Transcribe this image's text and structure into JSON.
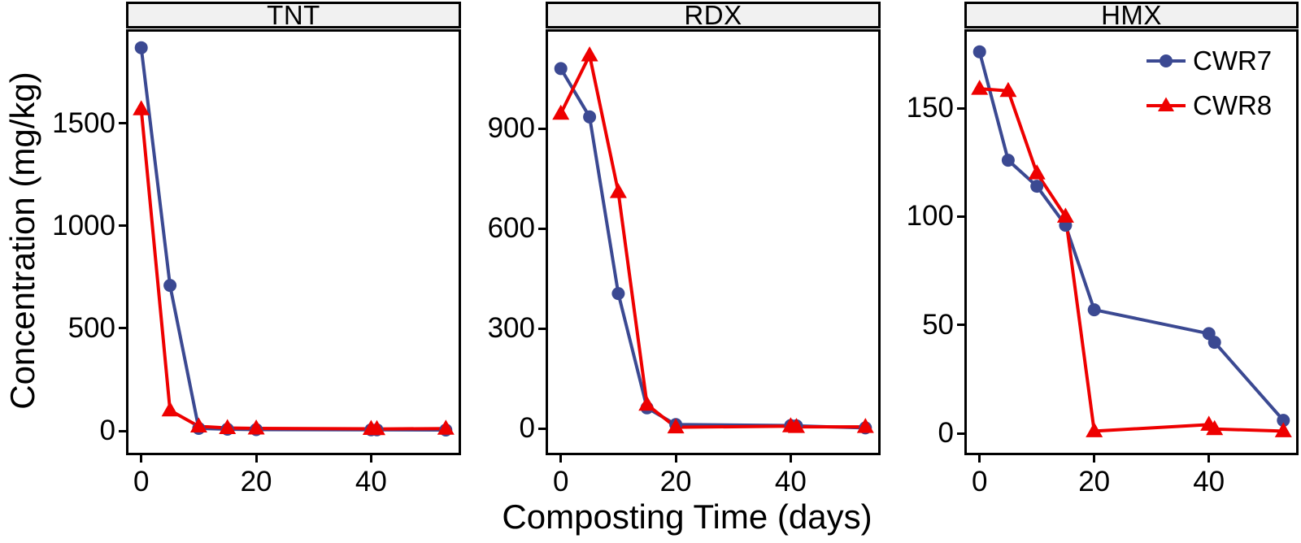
{
  "figure": {
    "xlabel": "Composting Time (days)",
    "ylabel": "Concentration (mg/kg)",
    "background_color": "#FFFFFF",
    "strip_background_color": "#F1F1F1",
    "panel_border_color": "#000000",
    "series_colors": {
      "CWR7": "#3B4992",
      "CWR8": "#EE0000"
    },
    "legend": {
      "location": "inside top-right of HMX panel"
    }
  },
  "chart_data": [
    {
      "type": "line",
      "panel": "TNT",
      "x_label_shared": "Composting Time (days)",
      "x": [
        0,
        5,
        10,
        15,
        20,
        40,
        41,
        53
      ],
      "series": [
        {
          "name": "CWR7",
          "marker": "circle",
          "color": "#3B4992",
          "values": [
            1870,
            710,
            12,
            8,
            6,
            5,
            5,
            4
          ]
        },
        {
          "name": "CWR8",
          "marker": "triangle",
          "color": "#EE0000",
          "values": [
            1570,
            100,
            22,
            14,
            12,
            10,
            9,
            11
          ]
        }
      ],
      "xticks": [
        0,
        20,
        40
      ],
      "yticks": [
        0,
        500,
        1000,
        1500
      ],
      "xlim": [
        -2.65,
        55.65
      ],
      "ylim": [
        -119,
        1960
      ],
      "grid": false
    },
    {
      "type": "line",
      "panel": "RDX",
      "x": [
        0,
        5,
        10,
        15,
        20,
        40,
        41,
        53
      ],
      "series": [
        {
          "name": "CWR7",
          "marker": "circle",
          "color": "#3B4992",
          "values": [
            1080,
            935,
            405,
            62,
            12,
            9,
            8,
            2
          ]
        },
        {
          "name": "CWR8",
          "marker": "triangle",
          "color": "#EE0000",
          "values": [
            945,
            1120,
            710,
            72,
            4,
            7,
            5,
            5
          ]
        }
      ],
      "xticks": [
        0,
        20,
        40
      ],
      "yticks": [
        0,
        300,
        600,
        900
      ],
      "xlim": [
        -2.65,
        55.65
      ],
      "ylim": [
        -80,
        1198
      ],
      "grid": false
    },
    {
      "type": "line",
      "panel": "HMX",
      "x": [
        0,
        5,
        10,
        15,
        20,
        40,
        41,
        53
      ],
      "series": [
        {
          "name": "CWR7",
          "marker": "circle",
          "color": "#3B4992",
          "values": [
            176,
            126,
            114,
            96,
            57,
            46,
            42,
            6
          ]
        },
        {
          "name": "CWR8",
          "marker": "triangle",
          "color": "#EE0000",
          "values": [
            159,
            158,
            120,
            100,
            1,
            4,
            2,
            1
          ]
        }
      ],
      "xticks": [
        0,
        20,
        40
      ],
      "yticks": [
        0,
        50,
        100,
        150
      ],
      "xlim": [
        -2.65,
        55.65
      ],
      "ylim": [
        -10.1,
        186.4
      ],
      "grid": false,
      "legend_in_panel": true
    }
  ]
}
